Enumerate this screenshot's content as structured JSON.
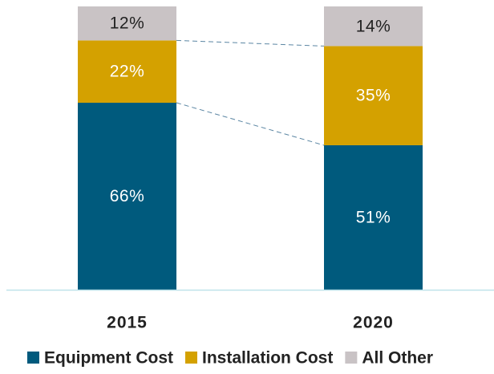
{
  "chart_data": {
    "type": "stacked_bar",
    "categories": [
      "2015",
      "2020"
    ],
    "series": [
      {
        "name": "Equipment Cost",
        "color": "#005a7d",
        "values": [
          66,
          51
        ],
        "value_labels": [
          "66%",
          "51%"
        ]
      },
      {
        "name": "Installation Cost",
        "color": "#d4a100",
        "values": [
          22,
          35
        ],
        "value_labels": [
          "22%",
          "35%"
        ]
      },
      {
        "name": "All Other",
        "color": "#c9c3c5",
        "values": [
          12,
          14
        ],
        "value_labels": [
          "12%",
          "14%"
        ]
      }
    ],
    "ylim": [
      0,
      100
    ]
  }
}
